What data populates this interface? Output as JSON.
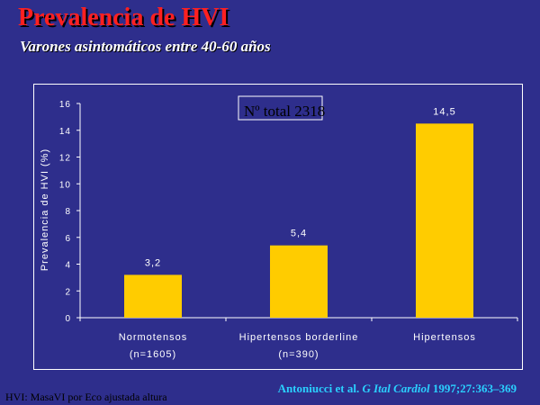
{
  "header": {
    "title": "Prevalencia de HVI",
    "subtitle": "Varones asintomáticos entre 40-60 años"
  },
  "annotation": "Nº total 2318",
  "citation": {
    "authors": "Antoniucci et al.",
    "journal": "G Ital Cardiol",
    "ref": "1997;27:363–369"
  },
  "footnote": "HVI: MasaVI por Eco ajustada altura",
  "colors": {
    "background": "#2e2e8c",
    "bar": "#ffcc00",
    "title": "#ff2020",
    "citation": "#2ad0ff",
    "axis_text": "#ffffff"
  },
  "chart_data": {
    "type": "bar",
    "categories": [
      [
        "Normotensos",
        "(n=1605)"
      ],
      [
        "Hipertensos borderline",
        "(n=390)"
      ],
      [
        "Hipertensos",
        ""
      ]
    ],
    "values": [
      3.2,
      5.4,
      14.5
    ],
    "data_labels": [
      "3,2",
      "5,4",
      "14,5"
    ],
    "ylabel": "Prevalencia de HVI (%)",
    "xlabel": "",
    "ylim": [
      0,
      16
    ],
    "yticks": [
      0,
      2,
      4,
      6,
      8,
      10,
      12,
      14,
      16
    ],
    "grid": false,
    "legend": "none"
  }
}
